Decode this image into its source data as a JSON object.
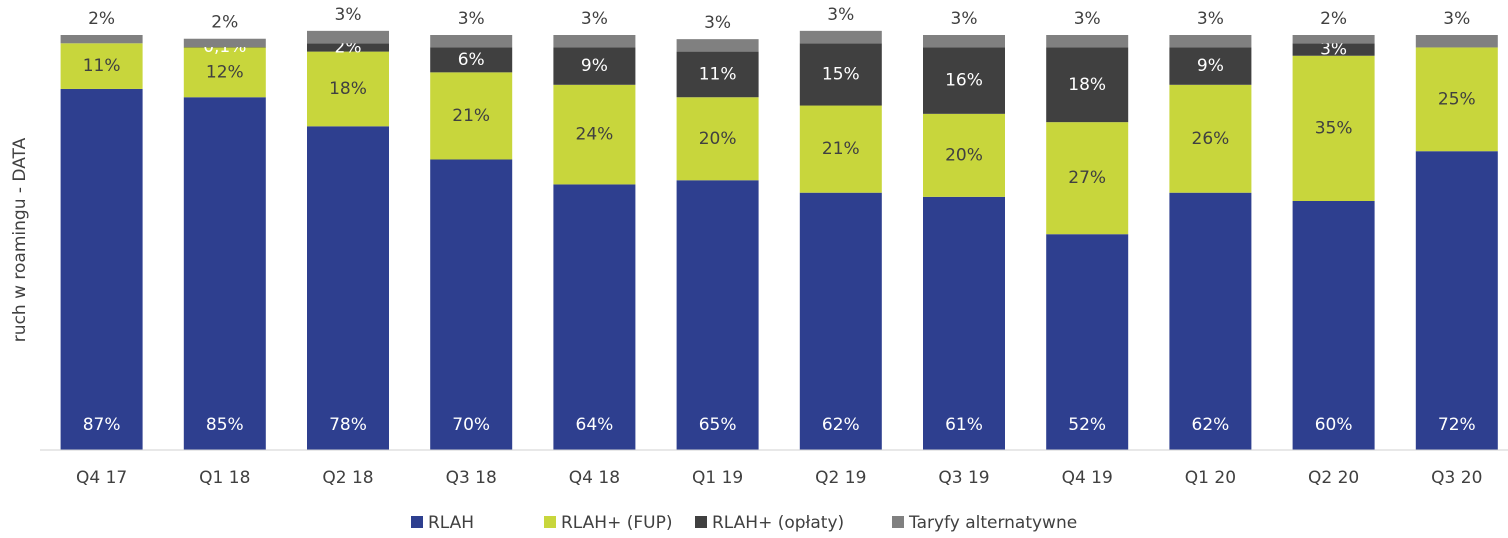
{
  "chart_data": {
    "type": "stacked_bar",
    "y_label": "ruch w roamingu - DATA",
    "categories": [
      "Q4 17",
      "Q1 18",
      "Q2 18",
      "Q3 18",
      "Q4 18",
      "Q1 19",
      "Q2 19",
      "Q3 19",
      "Q4 19",
      "Q1 20",
      "Q2 20",
      "Q3 20"
    ],
    "ylim": [
      0,
      100
    ],
    "legend": "bottom",
    "series": [
      {
        "name": "RLAH",
        "color": "#2e3f8f",
        "values": [
          87,
          85,
          78,
          70,
          64,
          65,
          62,
          61,
          52,
          62,
          60,
          72
        ],
        "value_labels": [
          "87%",
          "85%",
          "78%",
          "70%",
          "64%",
          "65%",
          "62%",
          "61%",
          "52%",
          "62%",
          "60%",
          "72%"
        ]
      },
      {
        "name": "RLAH+ (FUP)",
        "color": "#c8d63c",
        "values": [
          11,
          12,
          18,
          21,
          24,
          20,
          21,
          20,
          27,
          26,
          35,
          25
        ],
        "value_labels": [
          "11%",
          "12%",
          "18%",
          "21%",
          "24%",
          "20%",
          "21%",
          "20%",
          "27%",
          "26%",
          "35%",
          "25%"
        ]
      },
      {
        "name": "RLAH+ (opłaty)",
        "color": "#404040",
        "values": [
          null,
          0.1,
          2,
          6,
          9,
          11,
          15,
          16,
          18,
          9,
          3,
          null
        ],
        "value_labels": [
          null,
          "0,1%",
          "2%",
          "6%",
          "9%",
          "11%",
          "15%",
          "16%",
          "18%",
          "9%",
          "3%",
          null
        ]
      },
      {
        "name": "Taryfy alternatywne",
        "color": "#808080",
        "values": [
          2,
          2,
          3,
          3,
          3,
          3,
          3,
          3,
          3,
          3,
          2,
          3
        ],
        "value_labels": [
          "2%",
          "2%",
          "3%",
          "3%",
          "3%",
          "3%",
          "3%",
          "3%",
          "3%",
          "3%",
          "2%",
          "3%"
        ]
      }
    ]
  }
}
